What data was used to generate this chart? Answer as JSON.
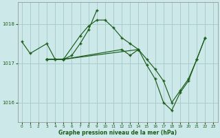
{
  "background_color": "#cce8e8",
  "plot_bg_color": "#cce8e8",
  "grid_color": "#aacccc",
  "line_color": "#1a5c1a",
  "marker_color": "#1a5c1a",
  "xlabel": "Graphe pression niveau de la mer (hPa)",
  "ylim": [
    1015.5,
    1018.55
  ],
  "xlim": [
    -0.5,
    23.5
  ],
  "yticks": [
    1016,
    1017,
    1018
  ],
  "xticks": [
    0,
    1,
    2,
    3,
    4,
    5,
    6,
    7,
    8,
    9,
    10,
    11,
    12,
    13,
    14,
    15,
    16,
    17,
    18,
    19,
    20,
    21,
    22,
    23
  ],
  "series": [
    {
      "x": [
        0,
        1,
        3,
        4,
        5,
        7,
        8,
        9,
        10,
        11,
        12,
        13,
        14
      ],
      "y": [
        1017.55,
        1017.25,
        1017.5,
        1017.1,
        1017.1,
        1017.7,
        1017.95,
        1018.1,
        1018.1,
        1017.9,
        1017.65,
        1017.5,
        1017.35
      ]
    },
    {
      "x": [
        3,
        4,
        5,
        6,
        7,
        8,
        9
      ],
      "y": [
        1017.1,
        1017.1,
        1017.1,
        1017.2,
        1017.5,
        1017.85,
        1018.35
      ]
    },
    {
      "x": [
        3,
        5,
        14,
        15,
        16,
        17,
        18,
        19,
        20,
        21,
        22
      ],
      "y": [
        1017.1,
        1017.1,
        1017.35,
        1017.1,
        1016.85,
        1016.55,
        1016.0,
        1016.3,
        1016.6,
        1017.1,
        1017.65
      ]
    },
    {
      "x": [
        3,
        5,
        12,
        13,
        14,
        15,
        16,
        17,
        18,
        19,
        20,
        21,
        22
      ],
      "y": [
        1017.1,
        1017.1,
        1017.35,
        1017.2,
        1017.35,
        1016.95,
        1016.6,
        1016.0,
        1015.8,
        1016.25,
        1016.55,
        1017.1,
        1017.65
      ]
    }
  ]
}
